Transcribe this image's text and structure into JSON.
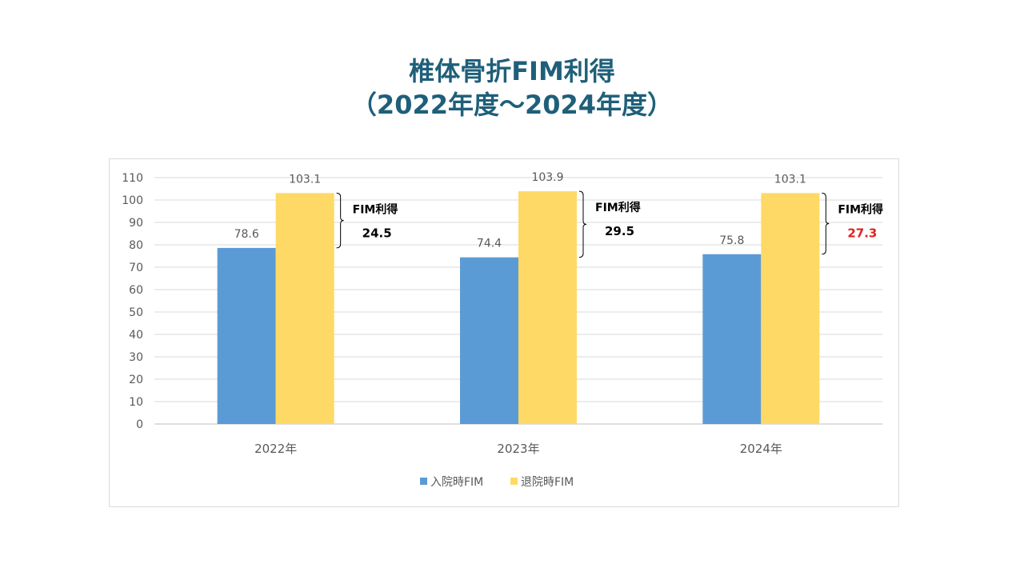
{
  "slide": {
    "title_line1": "椎体骨折FIM利得",
    "title_line2": "（2022年度～2024年度）"
  },
  "chart_data": {
    "type": "bar",
    "categories": [
      "2022年",
      "2023年",
      "2024年"
    ],
    "series": [
      {
        "name": "入院時FIM",
        "values": [
          78.6,
          74.4,
          75.8
        ],
        "color": "#5b9bd5"
      },
      {
        "name": "退院時FIM",
        "values": [
          103.1,
          103.9,
          103.1
        ],
        "color": "#ffd966"
      }
    ],
    "ylim": [
      0,
      110
    ],
    "yticks": [
      0,
      10,
      20,
      30,
      40,
      50,
      60,
      70,
      80,
      90,
      100,
      110
    ],
    "grid": true,
    "legend_position": "bottom",
    "annotations": [
      {
        "label": "FIM利得",
        "value": "24.5",
        "color": "#000000"
      },
      {
        "label": "FIM利得",
        "value": "29.5",
        "color": "#000000"
      },
      {
        "label": "FIM利得",
        "value": "27.3",
        "color": "#e02020"
      }
    ]
  }
}
